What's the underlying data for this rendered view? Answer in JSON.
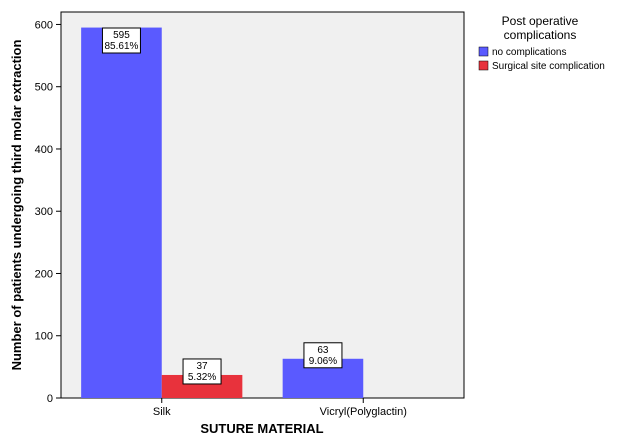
{
  "chart_data": {
    "type": "bar",
    "xlabel": "SUTURE MATERIAL",
    "ylabel": "Number of patients undergoing third molar extraction",
    "categories": [
      "Silk",
      "Vicryl(Polyglactin)"
    ],
    "yticks": [
      "0",
      "100",
      "200",
      "300",
      "400",
      "500",
      "600"
    ],
    "ylim": [
      0,
      620
    ],
    "legend": {
      "title_lines": [
        "Post operative",
        "complications"
      ],
      "placement": "right"
    },
    "series": [
      {
        "name": "no complications",
        "color": "#5a5aff",
        "values": [
          595,
          63
        ],
        "labels": [
          [
            "595",
            "85.61%"
          ],
          [
            "63",
            "9.06%"
          ]
        ]
      },
      {
        "name": "Surgical site complication",
        "color": "#e8323c",
        "values": [
          37,
          null
        ],
        "labels": [
          [
            "37",
            "5.32%"
          ],
          null
        ]
      }
    ]
  }
}
